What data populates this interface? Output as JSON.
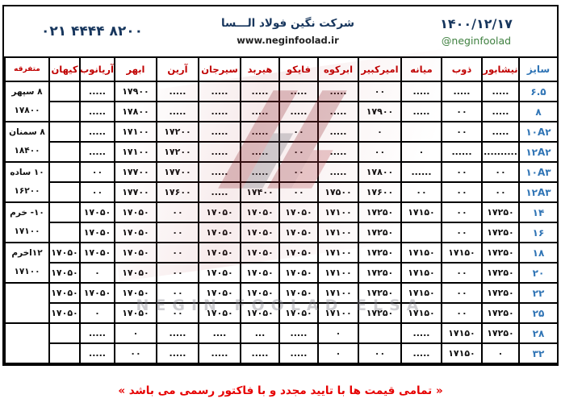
{
  "header": {
    "date": "۱۴۰۰/۱۲/۱۷",
    "telegram_handle": "@neginfoolad",
    "company_name": "شرکت نگین فولاد الـــسا",
    "website": "www.neginfoolad.ir",
    "phone": "۰۲۱ ۴۴۴۴ ۸۲۰۰"
  },
  "watermark": {
    "text": "NEGIN FOOLAD ELSA"
  },
  "footer": {
    "notice": "« تمامی قیمت ها با تایید مجدد و  با فاکتور رسمی می باشد »"
  },
  "colors": {
    "header_red": "#c00000",
    "size_blue": "#2f74b5",
    "navy": "#17365d",
    "green": "#3f8040",
    "footer_red": "#e60000",
    "logo_red": "#8c1f28"
  },
  "table": {
    "columns": [
      "سایز",
      "نیشابور",
      "ذوب",
      "میانه",
      "امیرکبیر",
      "ابرکوه",
      "فایکو",
      "هیربد",
      "سیرجان",
      "آرین",
      "ابهر",
      "آریانوب",
      "کیهان",
      "متفرقه"
    ],
    "rows": [
      {
        "size": "۶.۵",
        "values": [
          ".....",
          ".....",
          ".....",
          "۰۰",
          ".....",
          ".....",
          ".....",
          ".....",
          ".....",
          "۱۷۹۰۰",
          ".....",
          ""
        ]
      },
      {
        "size": "۸",
        "values": [
          ".....",
          "۰۰",
          ".....",
          "۱۷۹۰۰",
          ".....",
          ".....",
          ".....",
          ".....",
          ".....",
          "۱۷۸۰۰",
          ".....",
          ""
        ]
      },
      {
        "size": "۱۰A۲",
        "values": [
          ".....",
          "۰۰",
          "",
          "۰",
          ".....",
          "۰۰",
          ".....",
          ".....",
          "۱۷۲۰۰",
          "۱۷۱۰۰",
          ".....",
          ""
        ]
      },
      {
        "size": "۱۲A۲",
        "values": [
          "..........",
          "......",
          "۰",
          "۰۰",
          ".....",
          "۰۰",
          ".....",
          ".....",
          "۱۷۲۰۰",
          "۱۷۱۰۰",
          ".....",
          ""
        ]
      },
      {
        "size": "۱۰A۳",
        "values": [
          "۰۰",
          "۰۰",
          "......",
          "۱۷۸۰۰",
          ".....",
          "۰۰",
          ".....",
          ".....",
          "۱۷۷۰۰",
          "۱۷۷۰۰",
          "۰۰",
          ""
        ]
      },
      {
        "size": "۱۲A۳",
        "values": [
          "۰۰",
          "۰۰",
          "۰۰",
          "۱۷۶۰۰",
          "۱۷۵۰۰",
          "۰۰",
          "۱۷۴۰۰",
          ".....",
          "۱۷۶۰۰",
          "۱۷۷۰۰",
          "۰۰",
          ""
        ]
      },
      {
        "size": "۱۴",
        "values": [
          "۱۷۲۵۰",
          "۰۰",
          "۱۷۱۵۰",
          "۱۷۲۵۰",
          "۱۷۱۰۰",
          "۱۷۰۵۰",
          "۱۷۰۵۰",
          "۱۷۰۵۰",
          "۰۰",
          "۱۷۰۵۰",
          "۱۷۰۵۰",
          ""
        ]
      },
      {
        "size": "۱۶",
        "values": [
          "۱۷۲۵۰",
          "۰۰",
          "",
          "۱۷۲۵۰",
          "۱۷۱۰۰",
          "۱۷۰۵۰",
          "۱۷۰۵۰",
          "۱۷۰۵۰",
          "۰۰",
          "۱۷۰۵۰",
          "۱۷۰۵۰",
          ""
        ]
      },
      {
        "size": "۱۸",
        "values": [
          "۱۷۲۵۰",
          "۱۷۱۵۰",
          "۱۷۱۵۰",
          "۱۷۲۵۰",
          "۱۷۱۰۰",
          "۱۷۰۵۰",
          "۱۷۰۵۰",
          "۱۷۰۵۰",
          "۰۰",
          "۱۷۰۵۰",
          "۱۷۰۵۰",
          "۱۷۰۵۰"
        ]
      },
      {
        "size": "۲۰",
        "values": [
          "۱۷۲۵۰",
          "۰۰",
          "۱۷۱۵۰",
          "۱۷۲۵۰",
          "۱۷۱۰۰",
          "۱۷۰۵۰",
          "۱۷۰۵۰",
          "۱۷۰۵۰",
          "۰۰",
          "۱۷۰۵۰",
          "۰",
          "۱۷۰۵۰"
        ]
      },
      {
        "size": "۲۲",
        "values": [
          "۱۷۲۵۰",
          "۰۰",
          "۱۷۱۵۰",
          "۱۷۲۵۰",
          "۱۷۱۰۰",
          "۱۷۰۵۰",
          "۱۷۰۵۰",
          "۱۷۰۵۰",
          "۰۰",
          "۱۷۰۵۰",
          "۱۷۰۵۰",
          "۱۷۰۵۰"
        ]
      },
      {
        "size": "۲۵",
        "values": [
          "۱۷۲۵۰",
          "۰۰",
          "۱۷۱۵۰",
          "۱۷۲۵۰",
          "۱۷۱۰۰",
          "۱۷۰۵۰",
          "۱۷۰۵۰",
          "۱۷۰۵۰",
          "۰۰",
          "۱۷۰۵۰",
          "۰",
          "۱۷۰۵۰"
        ]
      },
      {
        "size": "۲۸",
        "values": [
          "۱۷۲۵۰",
          "۱۷۱۵۰",
          ".....",
          "",
          "۰",
          ".....",
          "...",
          "....",
          ".....",
          "۰",
          ".....",
          ""
        ]
      },
      {
        "size": "۳۲",
        "values": [
          "۰",
          "۱۷۱۵۰",
          ".....",
          "۰۰",
          "۰",
          ".....",
          ".....",
          ".....",
          ".....",
          "۰۰",
          ".....",
          ""
        ]
      }
    ],
    "misc_groups": [
      {
        "name": "۸ سپهر",
        "price": "۱۷۸۰۰"
      },
      {
        "name": "۸ سمنان",
        "price": "۱۸۴۰۰"
      },
      {
        "name": "۱۰ ساده",
        "price": "۱۶۲۰۰"
      },
      {
        "name": "۱۰- خرم",
        "price": "۱۷۱۰۰"
      },
      {
        "name": "۱۲اخرم",
        "price": "۱۷۱۰۰"
      },
      {
        "name": "",
        "price": ""
      },
      {
        "name": "",
        "price": ""
      }
    ]
  }
}
